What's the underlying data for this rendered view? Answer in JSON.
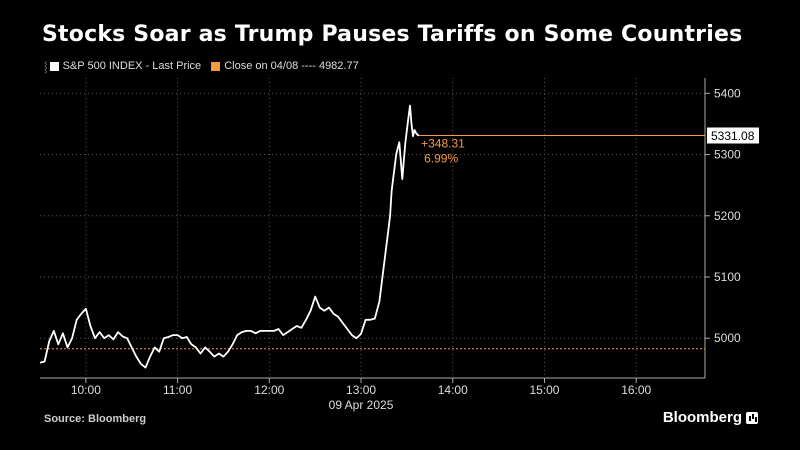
{
  "header": {
    "title": "Stocks Soar as Trump Pauses Tariffs on Some Countries"
  },
  "legend": {
    "series_label": "S&P 500 INDEX - Last Price",
    "close_label": "Close on 04/08 ---- 4982.77"
  },
  "footer": {
    "source": "Source: Bloomberg",
    "brand": "Bloomberg"
  },
  "colors": {
    "background": "#000000",
    "line": "#ffffff",
    "reference": "#f39c3d",
    "grid": "#555555"
  },
  "chart_data": {
    "type": "line",
    "x_unit": "time (09 Apr 2025)",
    "date_label": "09 Apr 2025",
    "xlim": [
      "09:30",
      "16:45"
    ],
    "ylim": [
      4935,
      5425
    ],
    "x_ticks": [
      "10:00",
      "11:00",
      "12:00",
      "13:00",
      "14:00",
      "15:00",
      "16:00"
    ],
    "y_ticks": [
      "5000",
      "5100",
      "5200",
      "5300",
      "5400"
    ],
    "grid": true,
    "legend_position": "top-left",
    "series": [
      {
        "name": "S&P 500 INDEX - Last Price",
        "x": [
          "09:30",
          "09:33",
          "09:36",
          "09:39",
          "09:42",
          "09:45",
          "09:48",
          "09:51",
          "09:54",
          "09:57",
          "10:00",
          "10:03",
          "10:06",
          "10:09",
          "10:12",
          "10:15",
          "10:18",
          "10:21",
          "10:24",
          "10:27",
          "10:30",
          "10:33",
          "10:36",
          "10:39",
          "10:42",
          "10:45",
          "10:48",
          "10:51",
          "10:54",
          "10:57",
          "11:00",
          "11:03",
          "11:06",
          "11:09",
          "11:12",
          "11:15",
          "11:18",
          "11:21",
          "11:24",
          "11:27",
          "11:30",
          "11:33",
          "11:36",
          "11:39",
          "11:42",
          "11:45",
          "11:48",
          "11:51",
          "11:54",
          "11:57",
          "12:00",
          "12:03",
          "12:06",
          "12:09",
          "12:12",
          "12:15",
          "12:18",
          "12:21",
          "12:24",
          "12:27",
          "12:30",
          "12:33",
          "12:36",
          "12:39",
          "12:42",
          "12:45",
          "12:48",
          "12:51",
          "12:54",
          "12:57",
          "13:00",
          "13:03",
          "13:06",
          "13:09",
          "13:12",
          "13:15",
          "13:18",
          "13:19",
          "13:20",
          "13:21",
          "13:22",
          "13:23",
          "13:24",
          "13:25",
          "13:26",
          "13:27",
          "13:28",
          "13:29",
          "13:30",
          "13:31",
          "13:32",
          "13:33",
          "13:34",
          "13:35",
          "13:36",
          "13:37",
          "13:38"
        ],
        "values": [
          4960,
          4962,
          4995,
          5012,
          4990,
          5008,
          4985,
          5000,
          5030,
          5040,
          5048,
          5020,
          5000,
          5010,
          5000,
          5005,
          4998,
          5010,
          5003,
          5000,
          4985,
          4970,
          4958,
          4952,
          4970,
          4985,
          4978,
          5000,
          5002,
          5005,
          5005,
          5000,
          5002,
          4990,
          4985,
          4975,
          4985,
          4978,
          4970,
          4975,
          4970,
          4978,
          4990,
          5005,
          5010,
          5012,
          5012,
          5008,
          5012,
          5012,
          5012,
          5012,
          5015,
          5005,
          5010,
          5015,
          5020,
          5017,
          5030,
          5045,
          5068,
          5050,
          5045,
          5050,
          5040,
          5035,
          5025,
          5015,
          5005,
          5000,
          5007,
          5030,
          5030,
          5032,
          5060,
          5120,
          5180,
          5200,
          5240,
          5260,
          5280,
          5300,
          5310,
          5320,
          5290,
          5260,
          5290,
          5320,
          5340,
          5360,
          5380,
          5350,
          5330,
          5340,
          5335,
          5332,
          5331.08
        ]
      }
    ],
    "reference_line": {
      "label": "Close on 04/08",
      "value": 4982.77
    },
    "last_value": 5331.08,
    "last_value_label": "5331.08",
    "annotations": {
      "change": "+348.31",
      "change_pct": "6.99%"
    }
  }
}
